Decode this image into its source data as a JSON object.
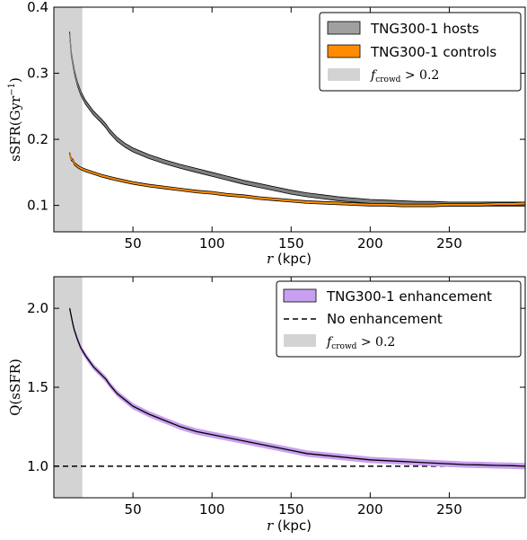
{
  "chart_data": [
    {
      "type": "line",
      "ylabel": "sSFR(Gyr^-1)",
      "ylabel_main": "sSFR(Gyr",
      "ylabel_sup": "−1",
      "ylabel_close": ")",
      "xlabel_var": "r",
      "xlabel_unit": " (kpc)",
      "xlim": [
        0,
        298
      ],
      "ylim": [
        0.06,
        0.4
      ],
      "xticks": [
        50,
        100,
        150,
        200,
        250
      ],
      "yticks": [
        0.1,
        0.2,
        0.3,
        0.4
      ],
      "ytick_labels": [
        "0.1",
        "0.2",
        "0.3",
        "0.4"
      ],
      "shaded_region": {
        "x0": 0,
        "x1": 18,
        "color": "#d3d3d3"
      },
      "legend_position": "top-right",
      "legend": [
        {
          "label": "TNG300-1 hosts",
          "kind": "patch",
          "color": "#a0a0a0"
        },
        {
          "label": "TNG300-1 controls",
          "kind": "patch",
          "color": "#ff8c00"
        },
        {
          "label_var": "f",
          "label_sub": "crowd",
          "label_rest": " > 0.2",
          "kind": "shade",
          "color": "#d3d3d3"
        }
      ],
      "series": [
        {
          "name": "TNG300-1 hosts",
          "color": "#808080",
          "band": 0.003,
          "x": [
            10,
            11,
            12,
            13,
            14,
            15,
            17,
            20,
            25,
            30,
            33,
            35,
            40,
            45,
            50,
            60,
            70,
            80,
            90,
            100,
            110,
            120,
            130,
            140,
            150,
            160,
            170,
            180,
            190,
            200,
            210,
            220,
            230,
            240,
            250,
            260,
            270,
            280,
            290,
            298
          ],
          "y": [
            0.36,
            0.33,
            0.315,
            0.302,
            0.292,
            0.283,
            0.27,
            0.256,
            0.24,
            0.228,
            0.22,
            0.213,
            0.2,
            0.191,
            0.184,
            0.174,
            0.166,
            0.159,
            0.153,
            0.147,
            0.141,
            0.135,
            0.13,
            0.125,
            0.12,
            0.116,
            0.113,
            0.11,
            0.108,
            0.106,
            0.105,
            0.104,
            0.103,
            0.103,
            0.102,
            0.102,
            0.102,
            0.102,
            0.102,
            0.102
          ]
        },
        {
          "name": "TNG300-1 controls",
          "color": "#ff8c00",
          "band": 0.002,
          "x": [
            10,
            11,
            12,
            13,
            15,
            17,
            20,
            25,
            30,
            35,
            40,
            50,
            60,
            70,
            80,
            90,
            100,
            110,
            120,
            130,
            140,
            150,
            160,
            170,
            180,
            190,
            200,
            210,
            220,
            230,
            240,
            250,
            260,
            270,
            280,
            290,
            298
          ],
          "y": [
            0.178,
            0.17,
            0.168,
            0.163,
            0.159,
            0.156,
            0.153,
            0.149,
            0.145,
            0.142,
            0.139,
            0.134,
            0.13,
            0.127,
            0.124,
            0.121,
            0.119,
            0.116,
            0.114,
            0.111,
            0.109,
            0.107,
            0.105,
            0.104,
            0.103,
            0.102,
            0.101,
            0.101,
            0.1,
            0.1,
            0.1,
            0.101,
            0.101,
            0.101,
            0.102,
            0.102,
            0.103
          ]
        }
      ]
    },
    {
      "type": "line",
      "ylabel": "Q(sSFR)",
      "xlabel_var": "r",
      "xlabel_unit": " (kpc)",
      "xlim": [
        0,
        298
      ],
      "ylim": [
        0.8,
        2.2
      ],
      "xticks": [
        50,
        100,
        150,
        200,
        250
      ],
      "yticks": [
        1.0,
        1.5,
        2.0
      ],
      "ytick_labels": [
        "1.0",
        "1.5",
        "2.0"
      ],
      "shaded_region": {
        "x0": 0,
        "x1": 18,
        "color": "#d3d3d3"
      },
      "reference_line": {
        "y": 1.0,
        "label": "No enhancement",
        "style": "dashed"
      },
      "legend_position": "top-right",
      "legend": [
        {
          "label": "TNG300-1 enhancement",
          "kind": "patch",
          "color": "#c9a0f0"
        },
        {
          "label": "No enhancement",
          "kind": "dashed",
          "color": "#000000"
        },
        {
          "label_var": "f",
          "label_sub": "crowd",
          "label_rest": " > 0.2",
          "kind": "shade",
          "color": "#d3d3d3"
        }
      ],
      "series": [
        {
          "name": "TNG300-1 enhancement",
          "color": "#000000",
          "band_color": "#c9a0f0",
          "band": 0.02,
          "x": [
            10,
            11,
            12,
            13,
            15,
            17,
            20,
            25,
            30,
            33,
            35,
            40,
            45,
            50,
            60,
            70,
            80,
            90,
            100,
            110,
            120,
            130,
            140,
            150,
            160,
            170,
            180,
            190,
            200,
            210,
            220,
            230,
            240,
            250,
            260,
            270,
            280,
            290,
            298
          ],
          "y": [
            2.0,
            1.95,
            1.9,
            1.86,
            1.8,
            1.75,
            1.7,
            1.63,
            1.58,
            1.55,
            1.52,
            1.46,
            1.42,
            1.38,
            1.33,
            1.29,
            1.25,
            1.22,
            1.2,
            1.18,
            1.16,
            1.14,
            1.12,
            1.1,
            1.08,
            1.07,
            1.06,
            1.05,
            1.04,
            1.035,
            1.03,
            1.025,
            1.02,
            1.015,
            1.01,
            1.008,
            1.005,
            1.003,
            1.0
          ]
        }
      ]
    }
  ]
}
